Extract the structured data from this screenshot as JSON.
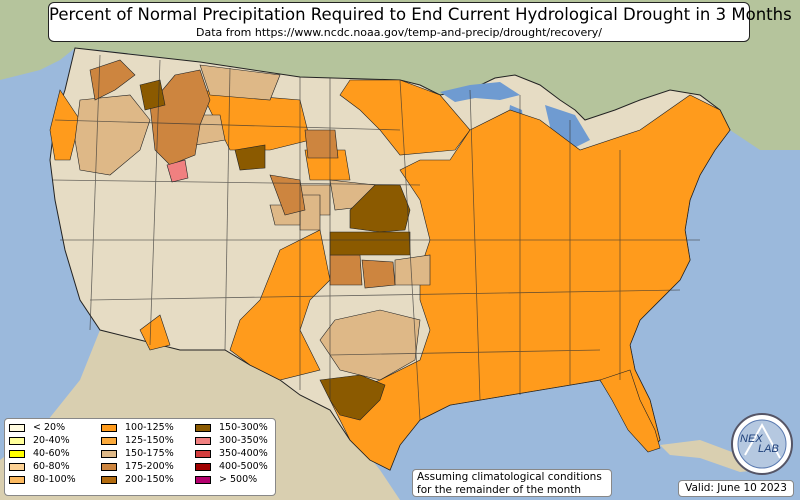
{
  "header": {
    "title": "Percent of Normal Precipitation Required to End Current Hydrological Drought in 3 Months",
    "subtitle": "Data from https://www.ncdc.noaa.gov/temp-and-precip/drought/recovery/"
  },
  "legend": {
    "items": [
      {
        "label": "< 20%",
        "color": "#fffbe0"
      },
      {
        "label": "20-40%",
        "color": "#ffff9a"
      },
      {
        "label": "40-60%",
        "color": "#ffff00"
      },
      {
        "label": "60-80%",
        "color": "#fdd295"
      },
      {
        "label": "80-100%",
        "color": "#fbb960"
      },
      {
        "label": "100-125%",
        "color": "#ff9b1c"
      },
      {
        "label": "125-150%",
        "color": "#fbaa3c"
      },
      {
        "label": "150-175%",
        "color": "#deb887"
      },
      {
        "label": "175-200%",
        "color": "#cd853f"
      },
      {
        "label": "200-150%",
        "color": "#b26b0f"
      },
      {
        "label": "150-300%",
        "color": "#8b5a00"
      },
      {
        "label": "300-350%",
        "color": "#f08080"
      },
      {
        "label": "350-400%",
        "color": "#d23c3c"
      },
      {
        "label": "400-500%",
        "color": "#a00000"
      },
      {
        "label": "> 500%",
        "color": "#b4006e"
      }
    ]
  },
  "note": {
    "line1": "Assuming climatological conditions",
    "line2": "for the remainder of the month"
  },
  "valid_label": "Valid: June 10 2023",
  "logo": {
    "text": "NEX",
    "text2": "LAB"
  },
  "colors": {
    "ocean": "#9bb9dc",
    "land": "#e6dcc4",
    "canada": "#b9c7a0",
    "lakes": "#6f9bd1"
  }
}
